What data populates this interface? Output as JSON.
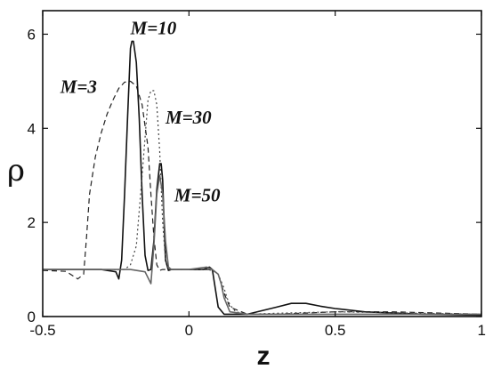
{
  "chart_data": {
    "type": "line",
    "title": "",
    "xlabel": "z",
    "ylabel": "ρ",
    "xlim": [
      -0.5,
      1.0
    ],
    "ylim": [
      0,
      6.5
    ],
    "grid": false,
    "x_ticks": [
      -0.5,
      0,
      0.5,
      1
    ],
    "x_tick_labels": [
      "-0.5",
      "0",
      "0.5",
      "1"
    ],
    "y_ticks": [
      0,
      2,
      4,
      6
    ],
    "y_tick_labels": [
      "0",
      "2",
      "4",
      "6"
    ],
    "series": [
      {
        "name": "M=3",
        "style": "dashed",
        "color": "#222222",
        "x": [
          -0.5,
          -0.42,
          -0.38,
          -0.36,
          -0.35,
          -0.34,
          -0.32,
          -0.3,
          -0.28,
          -0.26,
          -0.24,
          -0.22,
          -0.2,
          -0.18,
          -0.16,
          -0.14,
          -0.13,
          -0.12,
          -0.11,
          -0.1,
          -0.09,
          -0.08,
          -0.06,
          0.0,
          0.05,
          0.08,
          0.1,
          0.12,
          0.14,
          0.2,
          0.3,
          0.5,
          0.7,
          1.0
        ],
        "y": [
          0.98,
          0.96,
          0.8,
          0.9,
          1.7,
          2.6,
          3.4,
          3.9,
          4.3,
          4.6,
          4.85,
          4.98,
          5.0,
          4.9,
          4.5,
          3.6,
          2.6,
          1.7,
          1.1,
          0.98,
          1.0,
          1.0,
          1.0,
          1.0,
          1.0,
          1.0,
          0.9,
          0.5,
          0.2,
          0.05,
          0.05,
          0.1,
          0.1,
          0.05
        ]
      },
      {
        "name": "M=10",
        "style": "solid",
        "color": "#111111",
        "x": [
          -0.5,
          -0.3,
          -0.25,
          -0.24,
          -0.23,
          -0.22,
          -0.21,
          -0.2,
          -0.195,
          -0.19,
          -0.18,
          -0.17,
          -0.16,
          -0.15,
          -0.14,
          -0.13,
          -0.12,
          -0.11,
          -0.1,
          -0.095,
          -0.09,
          -0.085,
          -0.08,
          -0.07,
          -0.06,
          0.0,
          0.05,
          0.07,
          0.08,
          0.09,
          0.1,
          0.12,
          0.14,
          0.2,
          0.3,
          0.35,
          0.4,
          0.45,
          0.5,
          0.6,
          0.8,
          1.0
        ],
        "y": [
          1.0,
          1.0,
          0.95,
          0.8,
          1.2,
          2.6,
          4.2,
          5.7,
          5.85,
          5.85,
          5.4,
          4.2,
          2.6,
          1.3,
          0.98,
          1.0,
          1.6,
          2.7,
          3.25,
          3.25,
          2.9,
          2.0,
          1.2,
          0.98,
          1.0,
          1.0,
          1.0,
          1.05,
          1.0,
          0.6,
          0.2,
          0.05,
          0.05,
          0.05,
          0.2,
          0.28,
          0.28,
          0.22,
          0.17,
          0.1,
          0.05,
          0.03
        ]
      },
      {
        "name": "M=30",
        "style": "dotted",
        "color": "#444444",
        "x": [
          -0.5,
          -0.25,
          -0.22,
          -0.2,
          -0.18,
          -0.16,
          -0.14,
          -0.13,
          -0.12,
          -0.11,
          -0.1,
          -0.09,
          -0.08,
          -0.07,
          -0.06,
          0.0,
          0.06,
          0.08,
          0.1,
          0.12,
          0.13,
          0.14,
          0.16,
          0.2,
          0.3,
          0.5,
          0.7,
          1.0
        ],
        "y": [
          1.0,
          1.0,
          1.0,
          1.1,
          1.5,
          3.0,
          4.6,
          4.8,
          4.8,
          4.5,
          3.5,
          2.0,
          1.2,
          1.0,
          1.0,
          1.0,
          1.0,
          0.98,
          0.9,
          0.6,
          0.4,
          0.25,
          0.1,
          0.05,
          0.07,
          0.1,
          0.08,
          0.05
        ]
      },
      {
        "name": "M=50",
        "style": "solid",
        "color": "#666666",
        "x": [
          -0.5,
          -0.2,
          -0.15,
          -0.13,
          -0.12,
          -0.11,
          -0.1,
          -0.09,
          -0.08,
          -0.07,
          -0.06,
          0.0,
          0.06,
          0.08,
          0.1,
          0.11,
          0.12,
          0.14,
          0.2,
          0.5,
          1.0
        ],
        "y": [
          1.0,
          1.0,
          0.95,
          0.7,
          1.5,
          2.6,
          3.0,
          2.6,
          1.6,
          1.05,
          1.0,
          1.0,
          1.05,
          1.0,
          0.9,
          0.7,
          0.4,
          0.1,
          0.05,
          0.05,
          0.05
        ]
      }
    ],
    "annotations": [
      {
        "text": "M=10",
        "x": -0.2,
        "y": 6.0
      },
      {
        "text": "M=3",
        "x": -0.44,
        "y": 4.75
      },
      {
        "text": "M=30",
        "x": -0.08,
        "y": 4.1
      },
      {
        "text": "M=50",
        "x": -0.05,
        "y": 2.45
      }
    ]
  }
}
